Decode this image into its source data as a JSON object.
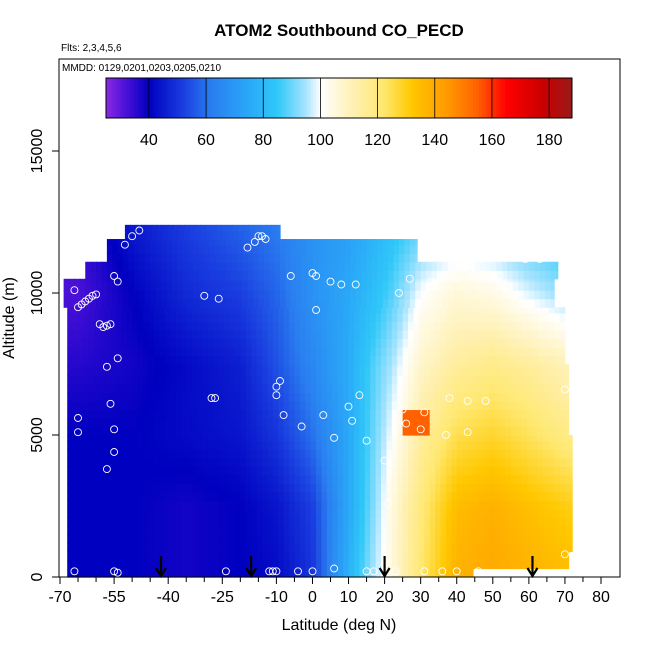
{
  "chart_data": {
    "type": "heatmap",
    "title": "ATOM2 Southbound CO_PECD",
    "subtitle_lines": [
      "Flts: 2,3,4,5,6",
      "MMDD: 0129,0201,0203,0205,0210"
    ],
    "xlabel": "Latitude (deg N)",
    "ylabel": "Altitude (m)",
    "xlim": [
      -70,
      80
    ],
    "ylim": [
      0,
      17500
    ],
    "x_ticks": [
      -70,
      -55,
      -40,
      -25,
      -10,
      0,
      10,
      20,
      30,
      40,
      50,
      60,
      70,
      80
    ],
    "x_minor_ticks": [
      -65,
      -60,
      -50,
      -45,
      -35,
      -30,
      -20,
      -15,
      -5,
      5,
      15,
      25,
      35,
      45,
      55,
      65,
      75
    ],
    "y_ticks": [
      0,
      5000,
      10000,
      15000
    ],
    "colorbar": {
      "range": [
        25,
        188
      ],
      "ticks": [
        40,
        60,
        80,
        100,
        120,
        140,
        160,
        180
      ],
      "stops": [
        {
          "v": 25,
          "c": "#8a2be2"
        },
        {
          "v": 32,
          "c": "#4b10d8"
        },
        {
          "v": 40,
          "c": "#0000c0"
        },
        {
          "v": 52,
          "c": "#1a3ee0"
        },
        {
          "v": 62,
          "c": "#2a7ef0"
        },
        {
          "v": 75,
          "c": "#2aa8f8"
        },
        {
          "v": 85,
          "c": "#30c8f8"
        },
        {
          "v": 95,
          "c": "#a8e4ff"
        },
        {
          "v": 100,
          "c": "#ffffff"
        },
        {
          "v": 112,
          "c": "#fff0b0"
        },
        {
          "v": 122,
          "c": "#ffe870"
        },
        {
          "v": 132,
          "c": "#ffc800"
        },
        {
          "v": 145,
          "c": "#ff9600"
        },
        {
          "v": 155,
          "c": "#ff6000"
        },
        {
          "v": 165,
          "c": "#ff0000"
        },
        {
          "v": 178,
          "c": "#c80000"
        },
        {
          "v": 188,
          "c": "#9a1a1a"
        }
      ]
    },
    "field_rows": [
      {
        "alt": 0,
        "lats": [
          -65,
          -50,
          -35,
          -20,
          -10,
          0,
          10,
          17,
          22,
          30,
          40,
          50,
          60,
          72
        ],
        "vals": [
          40,
          40,
          38,
          40,
          42,
          50,
          78,
          95,
          105,
          122,
          138,
          140,
          138,
          135
        ]
      },
      {
        "alt": 2500,
        "lats": [
          -65,
          -50,
          -35,
          -20,
          -10,
          0,
          10,
          17,
          22,
          30,
          40,
          50,
          60,
          72
        ],
        "vals": [
          40,
          40,
          38,
          40,
          44,
          52,
          75,
          92,
          105,
          120,
          135,
          138,
          134,
          130
        ]
      },
      {
        "alt": 5000,
        "lats": [
          -65,
          -50,
          -35,
          -20,
          -10,
          0,
          10,
          17,
          22,
          30,
          40,
          50,
          60,
          72
        ],
        "vals": [
          40,
          40,
          42,
          44,
          50,
          60,
          75,
          90,
          100,
          115,
          125,
          128,
          124,
          118
        ]
      },
      {
        "alt": 7500,
        "lats": [
          -65,
          -50,
          -35,
          -20,
          -10,
          0,
          10,
          17,
          22,
          30,
          40,
          50,
          60,
          72
        ],
        "vals": [
          36,
          38,
          42,
          46,
          55,
          65,
          76,
          88,
          95,
          108,
          115,
          118,
          115,
          110
        ]
      },
      {
        "alt": 10000,
        "lats": [
          -65,
          -50,
          -35,
          -20,
          -10,
          0,
          10,
          17,
          22,
          30,
          40,
          50,
          60,
          72
        ],
        "vals": [
          32,
          40,
          48,
          52,
          58,
          68,
          75,
          82,
          88,
          100,
          106,
          104,
          98,
          92
        ]
      },
      {
        "alt": 12500,
        "lats": [
          -65,
          -50,
          -35,
          -20,
          -10,
          0,
          10,
          17,
          22,
          30,
          40,
          50,
          60,
          72
        ],
        "vals": [
          34,
          45,
          52,
          58,
          62,
          68,
          72,
          78,
          82,
          88,
          92,
          90,
          85,
          80
        ]
      }
    ],
    "extent_rows": [
      {
        "alt_min": 0,
        "alt_max": 900,
        "lat_min": -68,
        "lat_max": 71
      },
      {
        "alt_min": 900,
        "alt_max": 5000,
        "lat_min": -68,
        "lat_max": 72
      },
      {
        "alt_min": 5000,
        "alt_max": 7500,
        "lat_min": -68,
        "lat_max": 71
      },
      {
        "alt_min": 7500,
        "alt_max": 9500,
        "lat_min": -68,
        "lat_max": 70
      },
      {
        "alt_min": 9500,
        "alt_max": 10500,
        "lat_min": -69,
        "lat_max": 67
      },
      {
        "alt_min": 10500,
        "alt_max": 11100,
        "lat_min": -63,
        "lat_max": 68
      },
      {
        "alt_min": 11100,
        "alt_max": 11900,
        "lat_min": -57,
        "lat_max": 29
      },
      {
        "alt_min": 11900,
        "alt_max": 12400,
        "lat_min": -52,
        "lat_max": -9
      }
    ],
    "hotspot": {
      "lat_min": 25,
      "lat_max": 33,
      "alt_min": 5050,
      "alt_max": 5950,
      "value": 155
    },
    "gap": {
      "lat_min": 45,
      "lat_max": 72,
      "alt_min": 0,
      "alt_max": 450
    },
    "points": [
      [
        -66,
        10100
      ],
      [
        -65,
        9500
      ],
      [
        -64,
        9600
      ],
      [
        -63,
        9700
      ],
      [
        -62,
        9800
      ],
      [
        -61,
        9900
      ],
      [
        -60,
        9950
      ],
      [
        -59,
        8900
      ],
      [
        -58,
        8800
      ],
      [
        -57,
        8850
      ],
      [
        -56,
        8900
      ],
      [
        -54,
        7700
      ],
      [
        -57,
        7400
      ],
      [
        -56,
        6100
      ],
      [
        -55,
        5200
      ],
      [
        -55,
        4400
      ],
      [
        -57,
        3800
      ],
      [
        -65,
        5600
      ],
      [
        -65,
        5100
      ],
      [
        -66,
        200
      ],
      [
        -55,
        200
      ],
      [
        -54,
        150
      ],
      [
        -55,
        10600
      ],
      [
        -54,
        10400
      ],
      [
        -52,
        11700
      ],
      [
        -50,
        12000
      ],
      [
        -48,
        12200
      ],
      [
        -30,
        9900
      ],
      [
        -28,
        6300
      ],
      [
        -27,
        6300
      ],
      [
        -26,
        9800
      ],
      [
        -24,
        200
      ],
      [
        -18,
        11600
      ],
      [
        -16,
        11800
      ],
      [
        -15,
        12000
      ],
      [
        -14,
        12000
      ],
      [
        -13,
        11900
      ],
      [
        -12,
        200
      ],
      [
        -11,
        200
      ],
      [
        -10,
        6400
      ],
      [
        -10,
        6700
      ],
      [
        -9,
        6900
      ],
      [
        -8,
        5700
      ],
      [
        -6,
        10600
      ],
      [
        -4,
        200
      ],
      [
        -3,
        5300
      ],
      [
        0,
        10700
      ],
      [
        1,
        10600
      ],
      [
        1,
        9400
      ],
      [
        3,
        5700
      ],
      [
        5,
        10400
      ],
      [
        6,
        300
      ],
      [
        6,
        4900
      ],
      [
        8,
        10300
      ],
      [
        10,
        6000
      ],
      [
        11,
        5500
      ],
      [
        12,
        10300
      ],
      [
        13,
        6400
      ],
      [
        15,
        4800
      ],
      [
        15,
        200
      ],
      [
        17,
        200
      ],
      [
        20,
        4100
      ],
      [
        21,
        2600
      ],
      [
        24,
        10000
      ],
      [
        25,
        5900
      ],
      [
        26,
        5400
      ],
      [
        27,
        10500
      ],
      [
        30,
        5200
      ],
      [
        31,
        5800
      ],
      [
        33,
        10400
      ],
      [
        37,
        5000
      ],
      [
        38,
        6300
      ],
      [
        40,
        10500
      ],
      [
        43,
        5100
      ],
      [
        43,
        6200
      ],
      [
        46,
        200
      ],
      [
        48,
        6200
      ],
      [
        49,
        10500
      ],
      [
        52,
        10600
      ],
      [
        59,
        11200
      ],
      [
        63,
        11200
      ],
      [
        66,
        11300
      ],
      [
        70,
        800
      ],
      [
        70,
        6600
      ],
      [
        -10,
        200
      ],
      [
        0,
        200
      ],
      [
        23,
        200
      ],
      [
        31,
        200
      ],
      [
        36,
        200
      ],
      [
        40,
        200
      ]
    ],
    "arrows": [
      -42,
      -17,
      20,
      61
    ]
  }
}
